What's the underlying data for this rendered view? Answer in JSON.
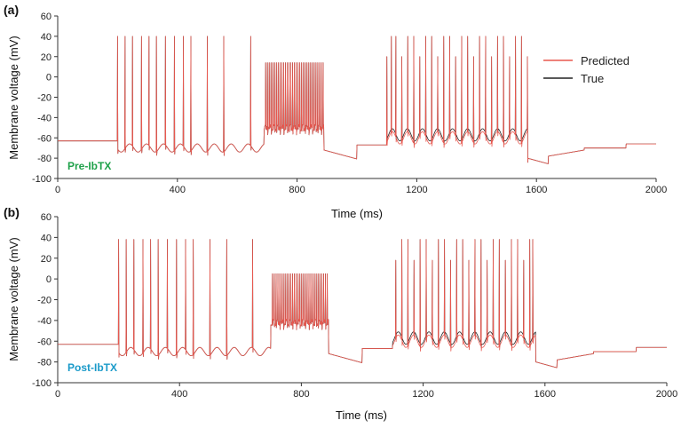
{
  "chart_data": [
    {
      "panel": "(a)",
      "type": "line",
      "condition_label": "Pre-IbTX",
      "condition_color": "#1fa14a",
      "xlabel": "Time (ms)",
      "ylabel": "Membrane voltage (mV)",
      "xlim": [
        0,
        2000
      ],
      "ylim": [
        -100,
        60
      ],
      "xticks": [
        0,
        400,
        800,
        1200,
        1600,
        2000
      ],
      "yticks": [
        -100,
        -80,
        -60,
        -40,
        -20,
        0,
        20,
        40,
        60
      ],
      "legend": {
        "position": "top-right",
        "entries": [
          {
            "name": "Predicted",
            "color": "#e8584f"
          },
          {
            "name": "True",
            "color": "#222222"
          }
        ]
      },
      "rest_mv": -63,
      "spike_peak_mv": 40,
      "plateau_1": {
        "start_ms": 690,
        "end_ms": 890,
        "level_mv": -50,
        "peak_mv": 14
      },
      "spikes_group_1_ms": [
        200,
        225,
        250,
        280,
        305,
        330,
        360,
        390,
        420,
        445,
        500,
        555,
        645
      ],
      "spikes_group_2_ms": [
        1100,
        1115,
        1130,
        1150,
        1170,
        1190,
        1210,
        1230,
        1250,
        1270,
        1290,
        1310,
        1330,
        1350,
        1370,
        1390,
        1410,
        1430,
        1450,
        1470,
        1490,
        1510,
        1530,
        1550,
        1570
      ],
      "series": [
        {
          "name": "Predicted",
          "color": "#e8584f"
        },
        {
          "name": "True",
          "color": "#222222"
        }
      ]
    },
    {
      "panel": "(b)",
      "type": "line",
      "condition_label": "Post-IbTX",
      "condition_color": "#1a9ac9",
      "xlabel": "Time (ms)",
      "ylabel": "Membrane voltage (mV)",
      "xlim": [
        0,
        2000
      ],
      "ylim": [
        -100,
        60
      ],
      "xticks": [
        0,
        400,
        800,
        1200,
        1600,
        2000
      ],
      "yticks": [
        -100,
        -80,
        -60,
        -40,
        -20,
        0,
        20,
        40,
        60
      ],
      "rest_mv": -63,
      "spike_peak_mv": 38,
      "plateau_1": {
        "start_ms": 700,
        "end_ms": 890,
        "level_mv": -42,
        "peak_mv": 5
      },
      "spikes_group_1_ms": [
        200,
        225,
        250,
        280,
        305,
        330,
        360,
        390,
        420,
        445,
        500,
        555,
        640
      ],
      "spikes_group_2_ms": [
        1110,
        1130,
        1150,
        1170,
        1190,
        1210,
        1230,
        1250,
        1270,
        1290,
        1310,
        1330,
        1350,
        1370,
        1390,
        1410,
        1430,
        1450,
        1470,
        1490,
        1510,
        1530,
        1550,
        1560
      ],
      "series": [
        {
          "name": "Predicted",
          "color": "#e8584f"
        },
        {
          "name": "True",
          "color": "#222222"
        }
      ]
    }
  ]
}
